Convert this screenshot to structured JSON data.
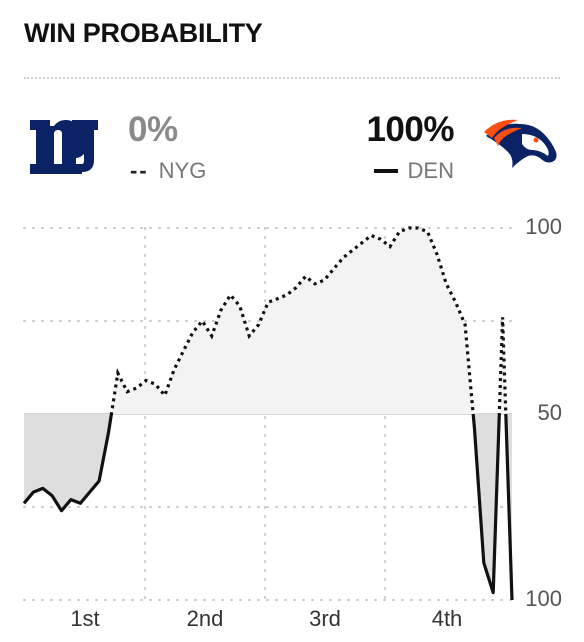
{
  "header": {
    "title": "WIN PROBABILITY"
  },
  "teams": {
    "left": {
      "abbr": "NYG",
      "pct": "0%",
      "legend_marker": "--",
      "logo_icon": "giants-ny-logo-icon",
      "color": "#0b2265"
    },
    "right": {
      "abbr": "DEN",
      "pct": "100%",
      "logo_icon": "broncos-horse-logo-icon",
      "color": "#fb4f14"
    }
  },
  "chart_data": {
    "type": "line",
    "title": "",
    "xlabel": "",
    "ylabel": "",
    "categories": [
      "1st",
      "2nd",
      "3rd",
      "4th"
    ],
    "ylim": [
      0,
      100
    ],
    "y_tick_labels": [
      "100",
      "50",
      "100"
    ],
    "grid": true,
    "baseline": 50,
    "series": [
      {
        "name": "DEN",
        "style": "dotted-above-solid-below",
        "values": [
          [
            0.0,
            26
          ],
          [
            1.0,
            29
          ],
          [
            2.0,
            30
          ],
          [
            3.0,
            28
          ],
          [
            4.0,
            24
          ],
          [
            5.0,
            27
          ],
          [
            6.0,
            26
          ],
          [
            7.0,
            29
          ],
          [
            8.0,
            32
          ],
          [
            9.0,
            45
          ],
          [
            10.0,
            61
          ],
          [
            11.0,
            56
          ],
          [
            12.0,
            57
          ],
          [
            13.0,
            59
          ],
          [
            14.0,
            58
          ],
          [
            15.0,
            55
          ],
          [
            16.0,
            62
          ],
          [
            17.0,
            67
          ],
          [
            18.0,
            72
          ],
          [
            19.0,
            75
          ],
          [
            20.0,
            71
          ],
          [
            21.0,
            78
          ],
          [
            22.0,
            82
          ],
          [
            23.0,
            79
          ],
          [
            24.0,
            71
          ],
          [
            25.0,
            74
          ],
          [
            26.0,
            80
          ],
          [
            27.0,
            81
          ],
          [
            28.0,
            82
          ],
          [
            29.0,
            84
          ],
          [
            30.0,
            87
          ],
          [
            31.0,
            85
          ],
          [
            32.0,
            86
          ],
          [
            33.0,
            89
          ],
          [
            34.0,
            92
          ],
          [
            35.0,
            94
          ],
          [
            36.0,
            96
          ],
          [
            37.0,
            98
          ],
          [
            38.0,
            97
          ],
          [
            39.0,
            95
          ],
          [
            40.0,
            99
          ],
          [
            41.0,
            100
          ],
          [
            42.0,
            100
          ],
          [
            43.0,
            99
          ],
          [
            44.0,
            93
          ],
          [
            45.0,
            85
          ],
          [
            46.0,
            80
          ],
          [
            47.0,
            74
          ],
          [
            48.0,
            46
          ],
          [
            49.0,
            10
          ],
          [
            50.0,
            2
          ],
          [
            51.0,
            76
          ],
          [
            52.0,
            0
          ]
        ]
      }
    ]
  }
}
